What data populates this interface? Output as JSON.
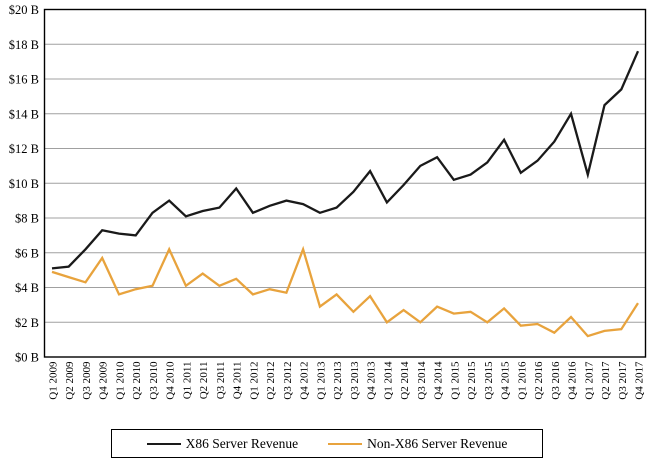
{
  "chart_data": {
    "type": "line",
    "title": "",
    "xlabel": "",
    "ylabel": "",
    "grid": true,
    "legend_position": "bottom",
    "categories": [
      "Q1 2009",
      "Q2 2009",
      "Q3 2009",
      "Q4 2009",
      "Q1 2010",
      "Q2 2010",
      "Q3 2010",
      "Q4 2010",
      "Q1 2011",
      "Q2 2011",
      "Q3 2011",
      "Q4 2011",
      "Q1 2012",
      "Q2 2012",
      "Q3 2012",
      "Q4 2012",
      "Q1 2013",
      "Q2 2013",
      "Q3 2013",
      "Q4 2013",
      "Q1 2014",
      "Q2 2014",
      "Q3 2014",
      "Q4 2014",
      "Q1 2015",
      "Q2 2015",
      "Q3 2015",
      "Q4 2015",
      "Q1 2016",
      "Q2 2016",
      "Q3 2016",
      "Q4 2016",
      "Q1 2017",
      "Q2 2017",
      "Q3 2017",
      "Q4 2017"
    ],
    "series": [
      {
        "name": "X86 Server Revenue",
        "color": "#1a1a1a",
        "values": [
          5.1,
          5.2,
          6.2,
          7.3,
          7.1,
          7.0,
          8.3,
          9.0,
          8.1,
          8.4,
          8.6,
          9.7,
          8.3,
          8.7,
          9.0,
          8.8,
          8.3,
          8.6,
          9.5,
          10.7,
          8.9,
          9.9,
          11.0,
          11.5,
          10.2,
          10.5,
          11.2,
          12.5,
          10.6,
          11.3,
          12.4,
          14.0,
          10.5,
          14.5,
          15.4,
          17.6
        ]
      },
      {
        "name": "Non-X86 Server Revenue",
        "color": "#e8a33d",
        "values": [
          4.9,
          4.6,
          4.3,
          5.7,
          3.6,
          3.9,
          4.1,
          6.2,
          4.1,
          4.8,
          4.1,
          4.5,
          3.6,
          3.9,
          3.7,
          6.2,
          2.9,
          3.6,
          2.6,
          3.5,
          2.0,
          2.7,
          2.0,
          2.9,
          2.5,
          2.6,
          2.0,
          2.8,
          1.8,
          1.9,
          1.4,
          2.3,
          1.2,
          1.5,
          1.6,
          3.1
        ]
      }
    ],
    "y_axis": {
      "min": 0,
      "max": 20,
      "step": 2,
      "tick_labels": [
        "$0 B",
        "$2 B",
        "$4 B",
        "$6 B",
        "$8 B",
        "$10 B",
        "$12 B",
        "$14 B",
        "$16 B",
        "$18 B",
        "$20 B"
      ]
    },
    "colors": {
      "gridline": "#a0a0a0",
      "plot_border": "#000000",
      "background": "#ffffff"
    }
  }
}
